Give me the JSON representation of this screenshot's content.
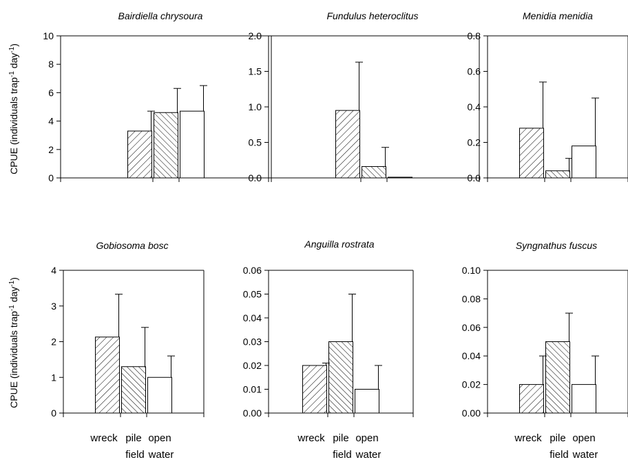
{
  "figure": {
    "ylabel_main": "CPUE (individuals trap",
    "ylabel_sup1": "-1",
    "ylabel_mid": " day",
    "ylabel_sup2": "-1",
    "ylabel_end": ")",
    "categories": [
      [
        "wreck"
      ],
      [
        "pile",
        "field"
      ],
      [
        "open",
        "water"
      ]
    ]
  },
  "chart_data": [
    {
      "type": "bar",
      "title": "Bairdiella chrysoura",
      "categories": [
        "wreck",
        "pile field",
        "open water"
      ],
      "values": [
        3.3,
        4.6,
        4.7
      ],
      "errors": [
        1.4,
        1.7,
        1.8
      ],
      "ylim": [
        0,
        10
      ],
      "yticks": [
        "0",
        "2",
        "4",
        "6",
        "8",
        "10"
      ],
      "fills": [
        "hatch-ne",
        "hatch-nw",
        "open"
      ]
    },
    {
      "type": "bar",
      "title": "Fundulus heteroclitus",
      "categories": [
        "wreck",
        "pile field",
        "open water"
      ],
      "values": [
        0.95,
        0.16,
        0.01
      ],
      "errors": [
        0.68,
        0.27,
        0
      ],
      "ylim": [
        0,
        2.0
      ],
      "yticks": [
        "0.0",
        "0.5",
        "1.0",
        "1.5",
        "2.0"
      ],
      "fills": [
        "hatch-ne",
        "hatch-nw",
        "open"
      ]
    },
    {
      "type": "bar",
      "title": "Menidia menidia",
      "categories": [
        "wreck",
        "pile field",
        "open water"
      ],
      "values": [
        0.28,
        0.04,
        0.18
      ],
      "errors": [
        0.26,
        0.07,
        0.27
      ],
      "ylim": [
        0,
        0.8
      ],
      "yticks": [
        "0.0",
        "0.2",
        "0.4",
        "0.6",
        "0.8"
      ],
      "fills": [
        "hatch-ne",
        "hatch-nw",
        "open"
      ]
    },
    {
      "type": "bar",
      "title": "Gobiosoma bosc",
      "categories": [
        "wreck",
        "pile field",
        "open water"
      ],
      "values": [
        2.13,
        1.3,
        1.0
      ],
      "errors": [
        1.2,
        1.1,
        0.6
      ],
      "ylim": [
        0,
        4
      ],
      "yticks": [
        "0",
        "1",
        "2",
        "3",
        "4"
      ],
      "fills": [
        "hatch-ne",
        "hatch-nw",
        "open"
      ]
    },
    {
      "type": "bar",
      "title": "Anguilla rostrata",
      "categories": [
        "wreck",
        "pile field",
        "open water"
      ],
      "values": [
        0.02,
        0.03,
        0.01
      ],
      "errors": [
        0.001,
        0.02,
        0.01
      ],
      "ylim": [
        0,
        0.06
      ],
      "yticks": [
        "0.00",
        "0.01",
        "0.02",
        "0.03",
        "0.04",
        "0.05",
        "0.06"
      ],
      "fills": [
        "hatch-ne",
        "hatch-nw",
        "open"
      ]
    },
    {
      "type": "bar",
      "title": "Syngnathus fuscus",
      "categories": [
        "wreck",
        "pile field",
        "open water"
      ],
      "values": [
        0.02,
        0.05,
        0.02
      ],
      "errors": [
        0.02,
        0.02,
        0.02
      ],
      "ylim": [
        0,
        0.1
      ],
      "yticks": [
        "0.00",
        "0.02",
        "0.04",
        "0.06",
        "0.08",
        "0.10"
      ],
      "fills": [
        "hatch-ne",
        "hatch-nw",
        "open"
      ]
    }
  ]
}
